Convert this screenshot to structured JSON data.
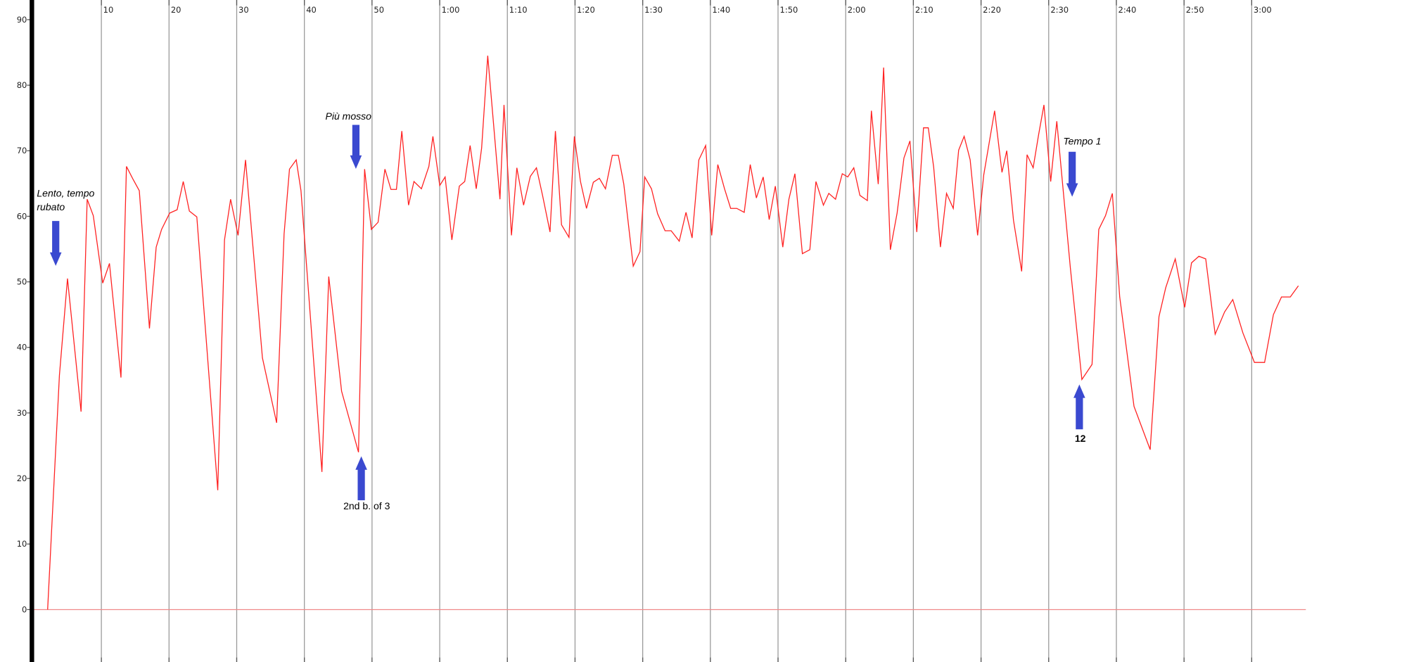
{
  "chart_data": {
    "type": "line",
    "x": [
      2.06,
      3.8,
      5.0,
      7.0,
      7.9,
      8.8,
      10.2,
      11.2,
      12.9,
      13.7,
      14.7,
      15.6,
      17.1,
      18.1,
      18.9,
      20.1,
      21.2,
      22.1,
      23.0,
      24.1,
      27.2,
      28.2,
      29.1,
      30.2,
      31.3,
      33.8,
      35.9,
      37.0,
      37.8,
      38.8,
      39.5,
      42.6,
      43.6,
      45.5,
      48.0,
      48.9,
      49.9,
      50.9,
      51.9,
      52.8,
      53.6,
      54.4,
      55.4,
      56.2,
      57.3,
      58.4,
      59.0,
      60.0,
      60.8,
      61.8,
      62.9,
      63.7,
      64.5,
      65.4,
      66.2,
      67.1,
      68.9,
      69.5,
      70.6,
      71.4,
      72.4,
      73.4,
      74.3,
      75.2,
      76.3,
      77.1,
      78.0,
      79.1,
      79.9,
      80.8,
      81.7,
      82.7,
      83.6,
      84.5,
      85.5,
      86.4,
      87.2,
      88.6,
      89.6,
      90.3,
      91.3,
      92.2,
      93.3,
      94.2,
      95.4,
      96.4,
      97.3,
      98.3,
      99.3,
      100.2,
      101.1,
      102.1,
      103.0,
      103.9,
      105.0,
      105.9,
      106.8,
      107.8,
      108.7,
      109.6,
      110.7,
      111.6,
      112.5,
      113.6,
      114.7,
      115.6,
      116.7,
      117.5,
      118.5,
      119.5,
      120.3,
      121.2,
      122.1,
      123.2,
      123.8,
      124.8,
      125.6,
      126.6,
      127.6,
      128.6,
      129.5,
      130.5,
      131.5,
      132.2,
      133.0,
      134.0,
      134.9,
      135.9,
      136.7,
      137.5,
      138.4,
      139.5,
      140.4,
      142.0,
      143.1,
      143.8,
      144.8,
      146.0,
      146.8,
      147.7,
      148.5,
      149.3,
      150.3,
      151.2,
      153.2,
      154.9,
      156.4,
      157.4,
      158.4,
      159.4,
      160.5,
      162.6,
      165.0,
      166.3,
      167.3,
      168.7,
      170.1,
      171.1,
      172.2,
      173.2,
      174.6,
      176.0,
      177.2,
      178.7,
      180.4,
      181.9,
      183.2,
      184.4,
      185.7,
      186.9
    ],
    "values": [
      0,
      35.7,
      50.5,
      30.2,
      62.6,
      60.1,
      49.8,
      52.8,
      35.4,
      67.6,
      65.6,
      63.9,
      42.9,
      55.3,
      58.0,
      60.5,
      61.0,
      65.3,
      60.8,
      59.9,
      18.2,
      56.4,
      62.6,
      57.1,
      68.6,
      38.4,
      28.5,
      57.3,
      67.2,
      68.6,
      63.9,
      21.0,
      50.8,
      33.3,
      24.0,
      67.2,
      58.0,
      59.1,
      67.2,
      64.1,
      64.1,
      73.0,
      61.7,
      65.3,
      64.2,
      67.6,
      72.2,
      64.7,
      66.0,
      56.4,
      64.6,
      65.3,
      70.8,
      64.2,
      70.4,
      84.5,
      62.6,
      77.0,
      57.1,
      67.4,
      61.7,
      66.1,
      67.4,
      63.2,
      57.6,
      73.0,
      58.7,
      56.8,
      72.2,
      65.3,
      61.2,
      65.2,
      65.8,
      64.2,
      69.3,
      69.3,
      64.9,
      52.4,
      54.6,
      66.0,
      64.2,
      60.4,
      57.8,
      57.8,
      56.2,
      60.6,
      56.7,
      68.6,
      70.8,
      57.1,
      67.9,
      64.2,
      61.2,
      61.2,
      60.6,
      67.9,
      62.8,
      66.0,
      59.5,
      64.6,
      55.3,
      62.6,
      66.5,
      54.3,
      54.9,
      65.3,
      61.7,
      63.5,
      62.6,
      66.5,
      66.0,
      67.4,
      63.2,
      62.4,
      76.1,
      64.9,
      82.7,
      54.9,
      60.5,
      68.9,
      71.5,
      57.6,
      73.5,
      73.5,
      67.5,
      55.3,
      63.5,
      61.2,
      70.1,
      72.2,
      68.6,
      57.1,
      66.3,
      76.1,
      66.7,
      70.0,
      59.4,
      51.6,
      69.4,
      67.4,
      72.4,
      77.0,
      65.3,
      74.5,
      52.1,
      35.1,
      37.4,
      58.0,
      60.1,
      63.5,
      47.7,
      31.0,
      24.4,
      44.7,
      49.1,
      53.5,
      46.1,
      52.9,
      53.9,
      53.5,
      42.0,
      45.4,
      47.3,
      42.2,
      37.7,
      37.7,
      45.0,
      47.7,
      47.7,
      49.4
    ],
    "color": "#ff2020",
    "xlim": [
      0,
      188
    ],
    "xticks": [
      10,
      20,
      30,
      40,
      50,
      {
        "value": 60,
        "label": "1:00"
      },
      {
        "value": 70,
        "label": "1:10"
      },
      {
        "value": 80,
        "label": "1:20"
      },
      {
        "value": 90,
        "label": "1:30"
      },
      {
        "value": 100,
        "label": "1:40"
      },
      {
        "value": 110,
        "label": "1:50"
      },
      {
        "value": 120,
        "label": "2:00"
      },
      {
        "value": 130,
        "label": "2:10"
      },
      {
        "value": 140,
        "label": "2:20"
      },
      {
        "value": 150,
        "label": "2:30"
      },
      {
        "value": 160,
        "label": "2:40"
      },
      {
        "value": 170,
        "label": "2:50"
      },
      {
        "value": 180,
        "label": "3:00"
      }
    ],
    "ylim": [
      -8,
      93
    ],
    "yticks": [
      0,
      10,
      20,
      30,
      40,
      50,
      60,
      70,
      80,
      90
    ],
    "grid": "x",
    "annotations": [
      "Lento, tempo rubato",
      "Più mosso",
      "2nd b. of 3",
      "Tempo 1",
      "12"
    ]
  }
}
